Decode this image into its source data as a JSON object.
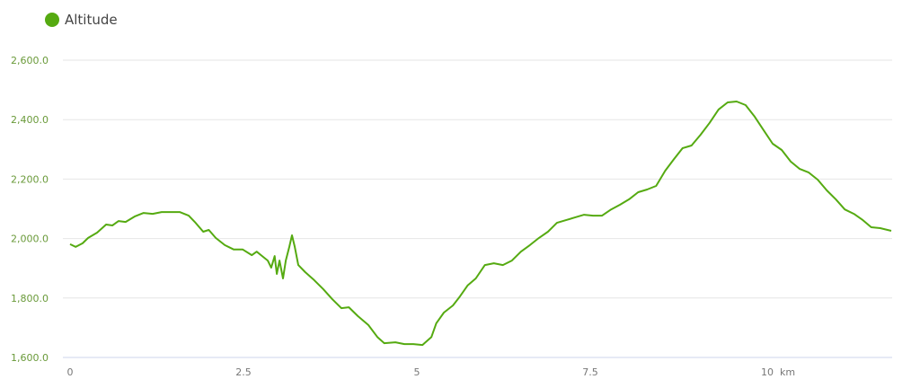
{
  "chart_data": {
    "type": "line",
    "title": "",
    "xlabel": "",
    "ylabel": "",
    "xlim": [
      0,
      11.84
    ],
    "ylim": [
      1600,
      2600
    ],
    "grid": true,
    "legend_placement": "top-left",
    "y_ticks": [
      "1,600.0",
      "1,800.0",
      "2,000.0",
      "2,200.0",
      "2,400.0",
      "2,600.0"
    ],
    "x_ticks": [
      "0",
      "2.5",
      "5",
      "7.5",
      "10  km"
    ],
    "series": [
      {
        "name": "Altitude",
        "color": "#55aa11",
        "x": [
          0,
          0.08,
          0.18,
          0.26,
          0.39,
          0.52,
          0.61,
          0.7,
          0.8,
          0.93,
          1.06,
          1.19,
          1.32,
          1.45,
          1.58,
          1.71,
          1.81,
          1.92,
          2.0,
          2.1,
          2.23,
          2.36,
          2.49,
          2.62,
          2.69,
          2.77,
          2.85,
          2.9,
          2.95,
          2.98,
          3.02,
          3.07,
          3.11,
          3.16,
          3.2,
          3.24,
          3.29,
          3.39,
          3.52,
          3.65,
          3.78,
          3.91,
          4.02,
          4.15,
          4.3,
          4.43,
          4.53,
          4.69,
          4.82,
          4.95,
          5.08,
          5.21,
          5.28,
          5.39,
          5.52,
          5.62,
          5.73,
          5.85,
          5.98,
          6.11,
          6.24,
          6.37,
          6.5,
          6.63,
          6.76,
          6.89,
          7.02,
          7.15,
          7.28,
          7.41,
          7.54,
          7.67,
          7.8,
          7.93,
          8.06,
          8.19,
          8.32,
          8.45,
          8.58,
          8.7,
          8.83,
          8.96,
          9.09,
          9.22,
          9.35,
          9.48,
          9.61,
          9.74,
          9.87,
          10.0,
          10.13,
          10.26,
          10.39,
          10.52,
          10.65,
          10.78,
          10.91,
          11.04,
          11.17,
          11.3,
          11.43,
          11.55,
          11.68,
          11.84
        ],
        "y": [
          1981,
          1972,
          1984,
          2002,
          2020,
          2047,
          2044,
          2059,
          2056,
          2074,
          2086,
          2083,
          2089,
          2089,
          2089,
          2077,
          2053,
          2023,
          2029,
          2002,
          1978,
          1963,
          1963,
          1944,
          1956,
          1941,
          1926,
          1902,
          1941,
          1881,
          1926,
          1866,
          1926,
          1972,
          2011,
          1972,
          1911,
          1887,
          1860,
          1830,
          1796,
          1766,
          1769,
          1739,
          1709,
          1669,
          1648,
          1651,
          1645,
          1645,
          1642,
          1669,
          1715,
          1751,
          1775,
          1805,
          1842,
          1866,
          1911,
          1917,
          1911,
          1926,
          1956,
          1978,
          2002,
          2023,
          2053,
          2062,
          2071,
          2080,
          2077,
          2077,
          2098,
          2114,
          2132,
          2156,
          2165,
          2177,
          2228,
          2265,
          2304,
          2313,
          2349,
          2389,
          2434,
          2458,
          2461,
          2449,
          2410,
          2364,
          2319,
          2298,
          2259,
          2234,
          2222,
          2198,
          2162,
          2132,
          2098,
          2083,
          2062,
          2038,
          2035,
          2026
        ]
      }
    ]
  }
}
